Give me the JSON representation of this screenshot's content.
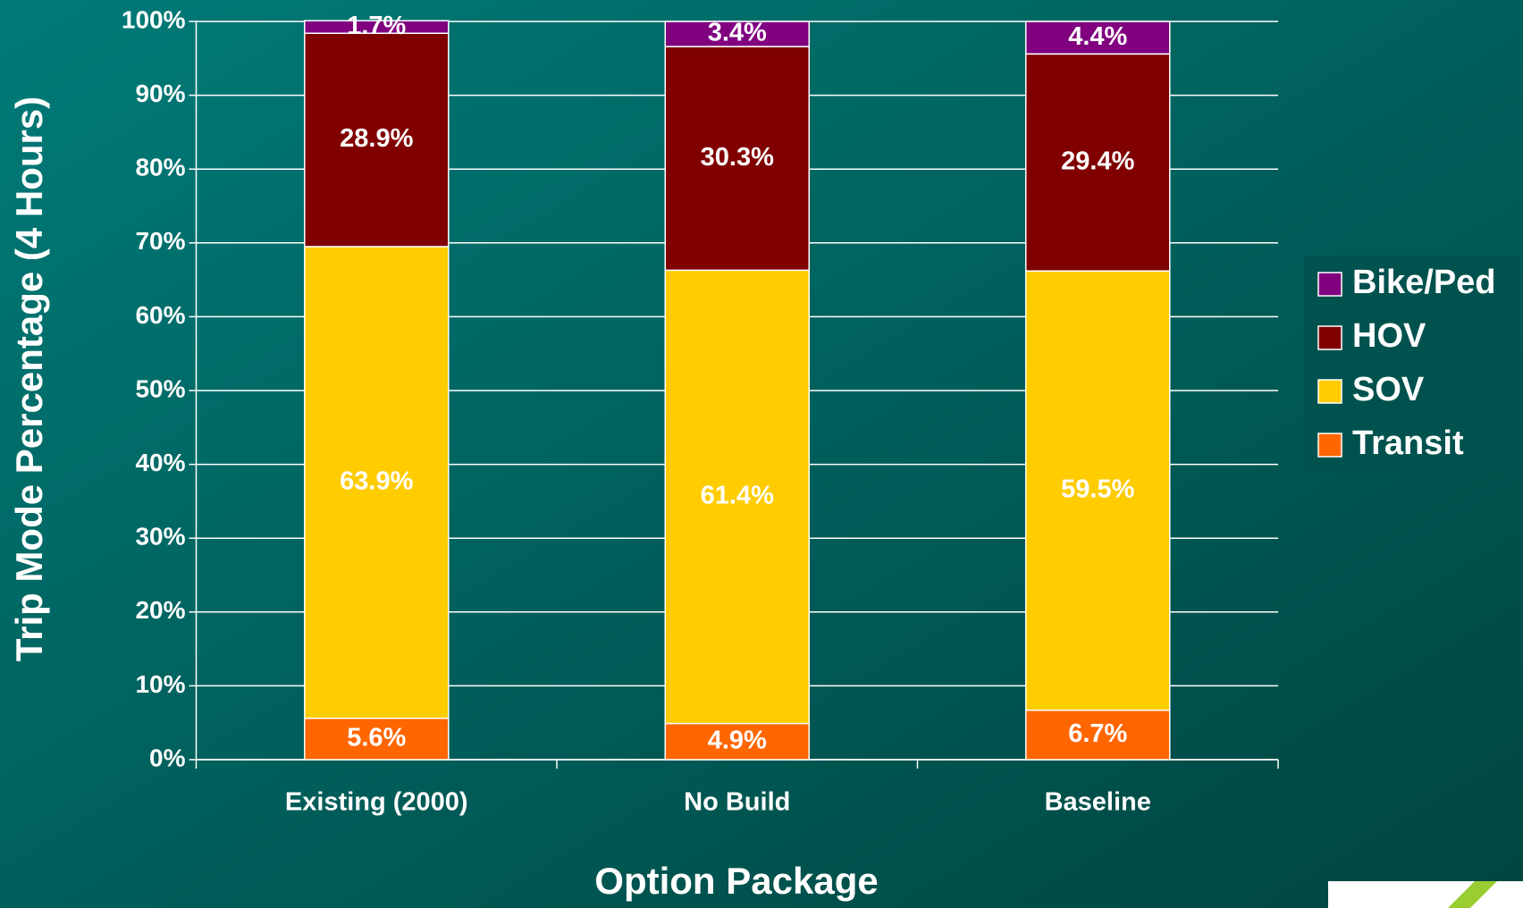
{
  "chart_data": {
    "type": "stacked_bar",
    "x_label": "Option Package",
    "y_label": "Trip Mode Percentage (4 Hours)",
    "categories": [
      "Existing (2000)",
      "No Build",
      "Baseline"
    ],
    "series": [
      {
        "name": "Transit",
        "color": "#ff6600",
        "values": [
          5.6,
          4.9,
          6.7
        ],
        "value_labels": [
          "5.6%",
          "4.9%",
          "6.7%"
        ]
      },
      {
        "name": "SOV",
        "color": "#ffcc00",
        "values": [
          63.9,
          61.4,
          59.5
        ],
        "value_labels": [
          "63.9%",
          "61.4%",
          "59.5%"
        ]
      },
      {
        "name": "HOV",
        "color": "#800000",
        "values": [
          28.9,
          30.3,
          29.4
        ],
        "value_labels": [
          "28.9%",
          "30.3%",
          "29.4%"
        ]
      },
      {
        "name": "Bike/Ped",
        "color": "#800080",
        "values": [
          1.7,
          3.4,
          4.4
        ],
        "value_labels": [
          "1.7%",
          "3.4%",
          "4.4%"
        ]
      }
    ],
    "ylim": [
      0,
      100
    ],
    "yticks": [
      {
        "value": 0,
        "label": "0%"
      },
      {
        "value": 10,
        "label": "10%"
      },
      {
        "value": 20,
        "label": "20%"
      },
      {
        "value": 30,
        "label": "30%"
      },
      {
        "value": 40,
        "label": "40%"
      },
      {
        "value": 50,
        "label": "50%"
      },
      {
        "value": 60,
        "label": "60%"
      },
      {
        "value": 70,
        "label": "70%"
      },
      {
        "value": 80,
        "label": "80%"
      },
      {
        "value": 90,
        "label": "90%"
      },
      {
        "value": 100,
        "label": "100%"
      }
    ],
    "grid": true,
    "legend": "right"
  }
}
